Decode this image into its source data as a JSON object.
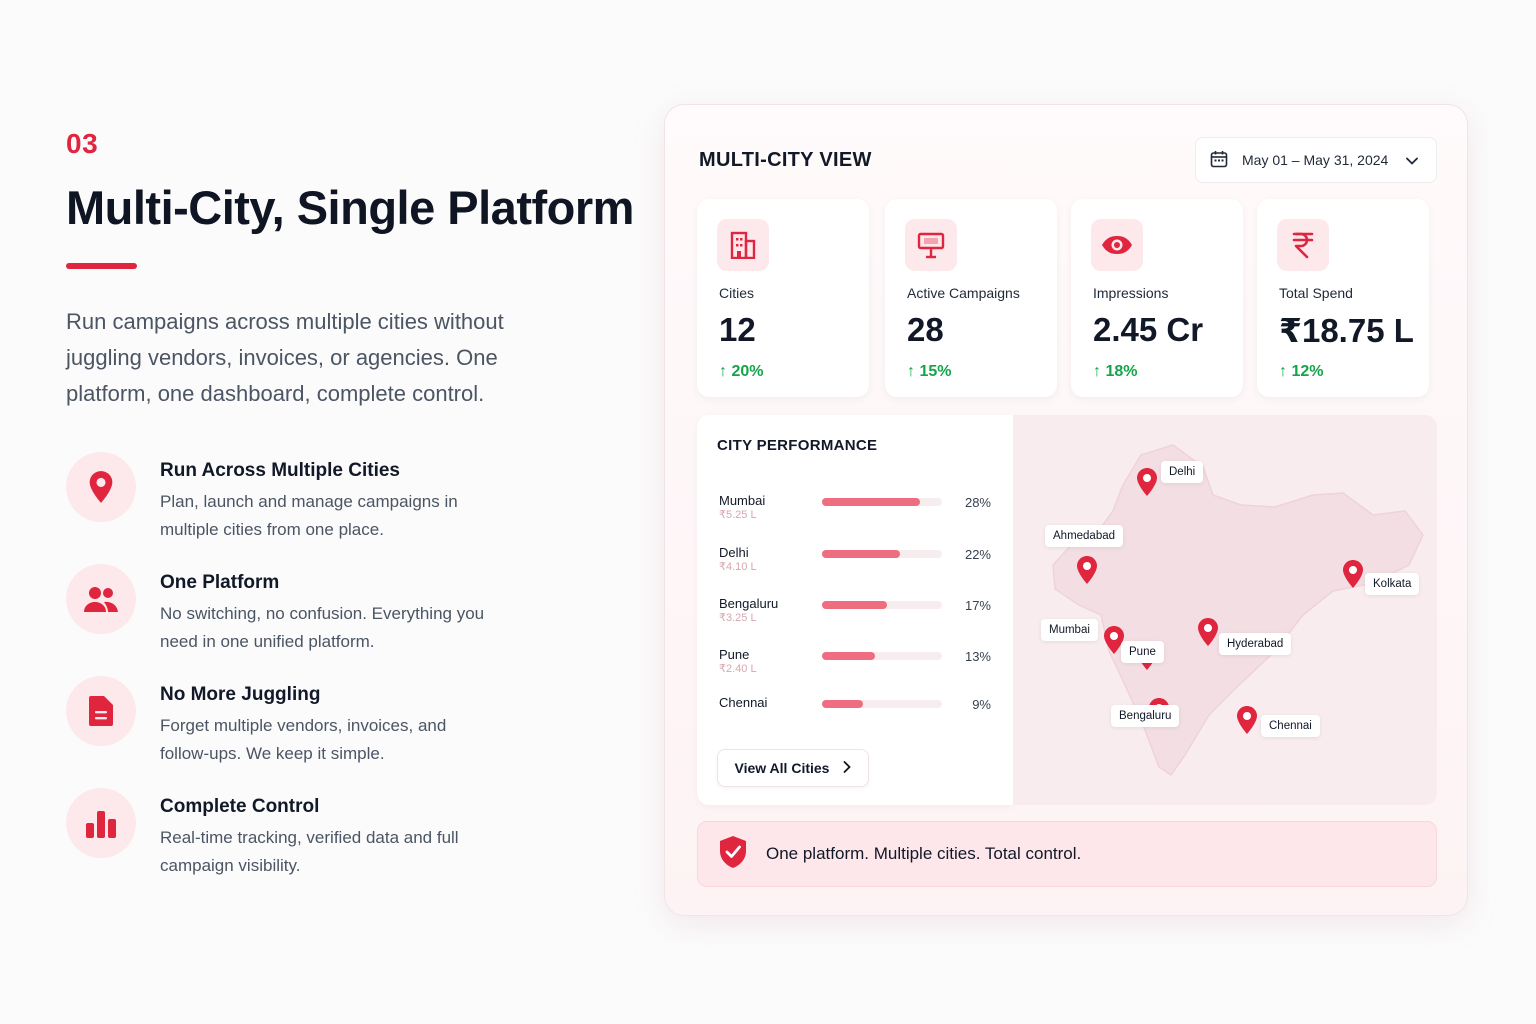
{
  "section": {
    "number": "03",
    "headline": "Multi-City, Single Platform",
    "intro": "Run campaigns across multiple cities without juggling vendors, invoices, or agencies. One platform, one dashboard, complete control."
  },
  "features": [
    {
      "icon": "map-pin-icon",
      "title": "Run Across Multiple Cities",
      "desc": "Plan, launch and manage campaigns in multiple cities from one place."
    },
    {
      "icon": "users-icon",
      "title": "One Platform",
      "desc": "No switching, no confusion. Everything you need in one unified platform."
    },
    {
      "icon": "document-icon",
      "title": "No More Juggling",
      "desc": "Forget multiple vendors, invoices, and follow-ups. We keep it simple."
    },
    {
      "icon": "bar-chart-icon",
      "title": "Complete Control",
      "desc": "Real-time tracking, verified data and full campaign visibility."
    }
  ],
  "dashboard": {
    "title": "MULTI-CITY VIEW",
    "date_range": "May 01 – May 31, 2024",
    "stats": [
      {
        "icon": "building-icon",
        "label": "Cities",
        "value": "12",
        "change": "20%"
      },
      {
        "icon": "billboard-icon",
        "label": "Active Campaigns",
        "value": "28",
        "change": "15%"
      },
      {
        "icon": "eye-icon",
        "label": "Impressions",
        "value": "2.45 Cr",
        "change": "18%"
      },
      {
        "icon": "rupee-icon",
        "label": "Total Spend",
        "value": "₹18.75 L",
        "change": "12%"
      }
    ],
    "city_performance": {
      "title": "CITY PERFORMANCE",
      "rows": [
        {
          "city": "Mumbai",
          "spend": "₹5.25 L",
          "pct": "28%",
          "share": 0.82
        },
        {
          "city": "Delhi",
          "spend": "₹4.10 L",
          "pct": "22%",
          "share": 0.65
        },
        {
          "city": "Bengaluru",
          "spend": "₹3.25 L",
          "pct": "17%",
          "share": 0.54
        },
        {
          "city": "Pune",
          "spend": "₹2.40 L",
          "pct": "13%",
          "share": 0.44
        },
        {
          "city": "Chennai",
          "spend": "",
          "pct": "9%",
          "share": 0.34
        }
      ],
      "view_all_label": "View All Cities"
    },
    "map_labels": [
      "Delhi",
      "Ahmedabad",
      "Kolkata",
      "Mumbai",
      "Pune",
      "Hyderabad",
      "Bengaluru",
      "Chennai"
    ],
    "banner_text": "One platform. Multiple cities. Total control."
  },
  "colors": {
    "accent": "#e0253f",
    "positive": "#16a34a",
    "bar": "#ee6d80"
  }
}
